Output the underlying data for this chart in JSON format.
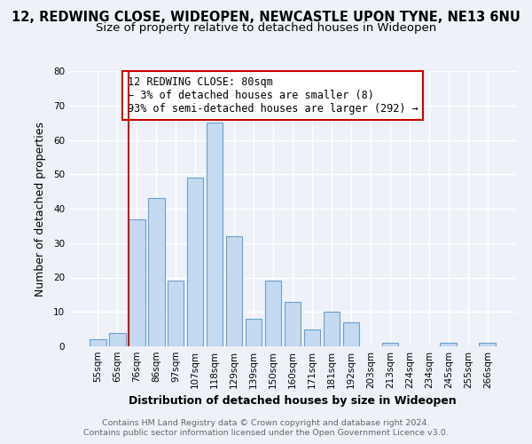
{
  "title": "12, REDWING CLOSE, WIDEOPEN, NEWCASTLE UPON TYNE, NE13 6NU",
  "subtitle": "Size of property relative to detached houses in Wideopen",
  "xlabel": "Distribution of detached houses by size in Wideopen",
  "ylabel": "Number of detached properties",
  "bin_labels": [
    "55sqm",
    "65sqm",
    "76sqm",
    "86sqm",
    "97sqm",
    "107sqm",
    "118sqm",
    "129sqm",
    "139sqm",
    "150sqm",
    "160sqm",
    "171sqm",
    "181sqm",
    "192sqm",
    "203sqm",
    "213sqm",
    "224sqm",
    "234sqm",
    "245sqm",
    "255sqm",
    "266sqm"
  ],
  "bar_values": [
    2,
    4,
    37,
    43,
    19,
    49,
    65,
    32,
    8,
    19,
    13,
    5,
    10,
    7,
    0,
    1,
    0,
    0,
    1,
    0,
    1
  ],
  "bar_color": "#c5d9f0",
  "bar_edge_color": "#6aa0cd",
  "vline_x_index": 2,
  "vline_color": "#cc0000",
  "annotation_line1": "12 REDWING CLOSE: 80sqm",
  "annotation_line2": "← 3% of detached houses are smaller (8)",
  "annotation_line3": "93% of semi-detached houses are larger (292) →",
  "annotation_box_color": "#cc0000",
  "ylim": [
    0,
    80
  ],
  "yticks": [
    0,
    10,
    20,
    30,
    40,
    50,
    60,
    70,
    80
  ],
  "footer_line1": "Contains HM Land Registry data © Crown copyright and database right 2024.",
  "footer_line2": "Contains public sector information licensed under the Open Government Licence v3.0.",
  "background_color": "#eef2f8",
  "grid_color": "#ffffff",
  "title_fontsize": 10.5,
  "subtitle_fontsize": 9.5,
  "axis_label_fontsize": 9,
  "tick_fontsize": 7.5,
  "annotation_fontsize": 8.5,
  "footer_fontsize": 6.8
}
